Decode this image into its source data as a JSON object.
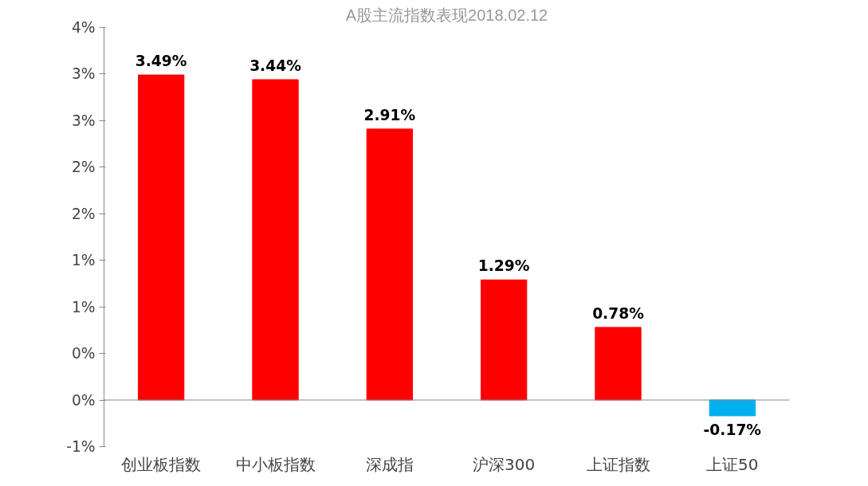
{
  "chart_data": {
    "type": "bar",
    "title": "A股主流指数表现2018.02.12",
    "categories": [
      "创业板指数",
      "中小板指数",
      "深成指",
      "沪深300",
      "上证指数",
      "上证50"
    ],
    "values": [
      3.49,
      3.44,
      2.91,
      1.29,
      0.78,
      -0.17
    ],
    "colors": [
      "#ff0000",
      "#ff0000",
      "#ff0000",
      "#ff0000",
      "#ff0000",
      "#00b0f0"
    ],
    "value_labels": [
      "3.49%",
      "3.44%",
      "2.91%",
      "1.29%",
      "0.78%",
      "-0.17%"
    ],
    "ylim": [
      -0.5,
      4
    ],
    "yticks": [
      {
        "value": 4,
        "label": "4%"
      },
      {
        "value": 3.5,
        "label": "3%"
      },
      {
        "value": 3,
        "label": "3%"
      },
      {
        "value": 2.5,
        "label": "2%"
      },
      {
        "value": 2,
        "label": "2%"
      },
      {
        "value": 1.5,
        "label": "1%"
      },
      {
        "value": 1,
        "label": "1%"
      },
      {
        "value": 0.5,
        "label": "0%"
      },
      {
        "value": 0,
        "label": "0%"
      },
      {
        "value": -0.5,
        "label": "-1%"
      }
    ],
    "ref_lines": [
      {
        "axis": "y",
        "value": 0,
        "color": "#888888"
      }
    ],
    "grid": false
  }
}
